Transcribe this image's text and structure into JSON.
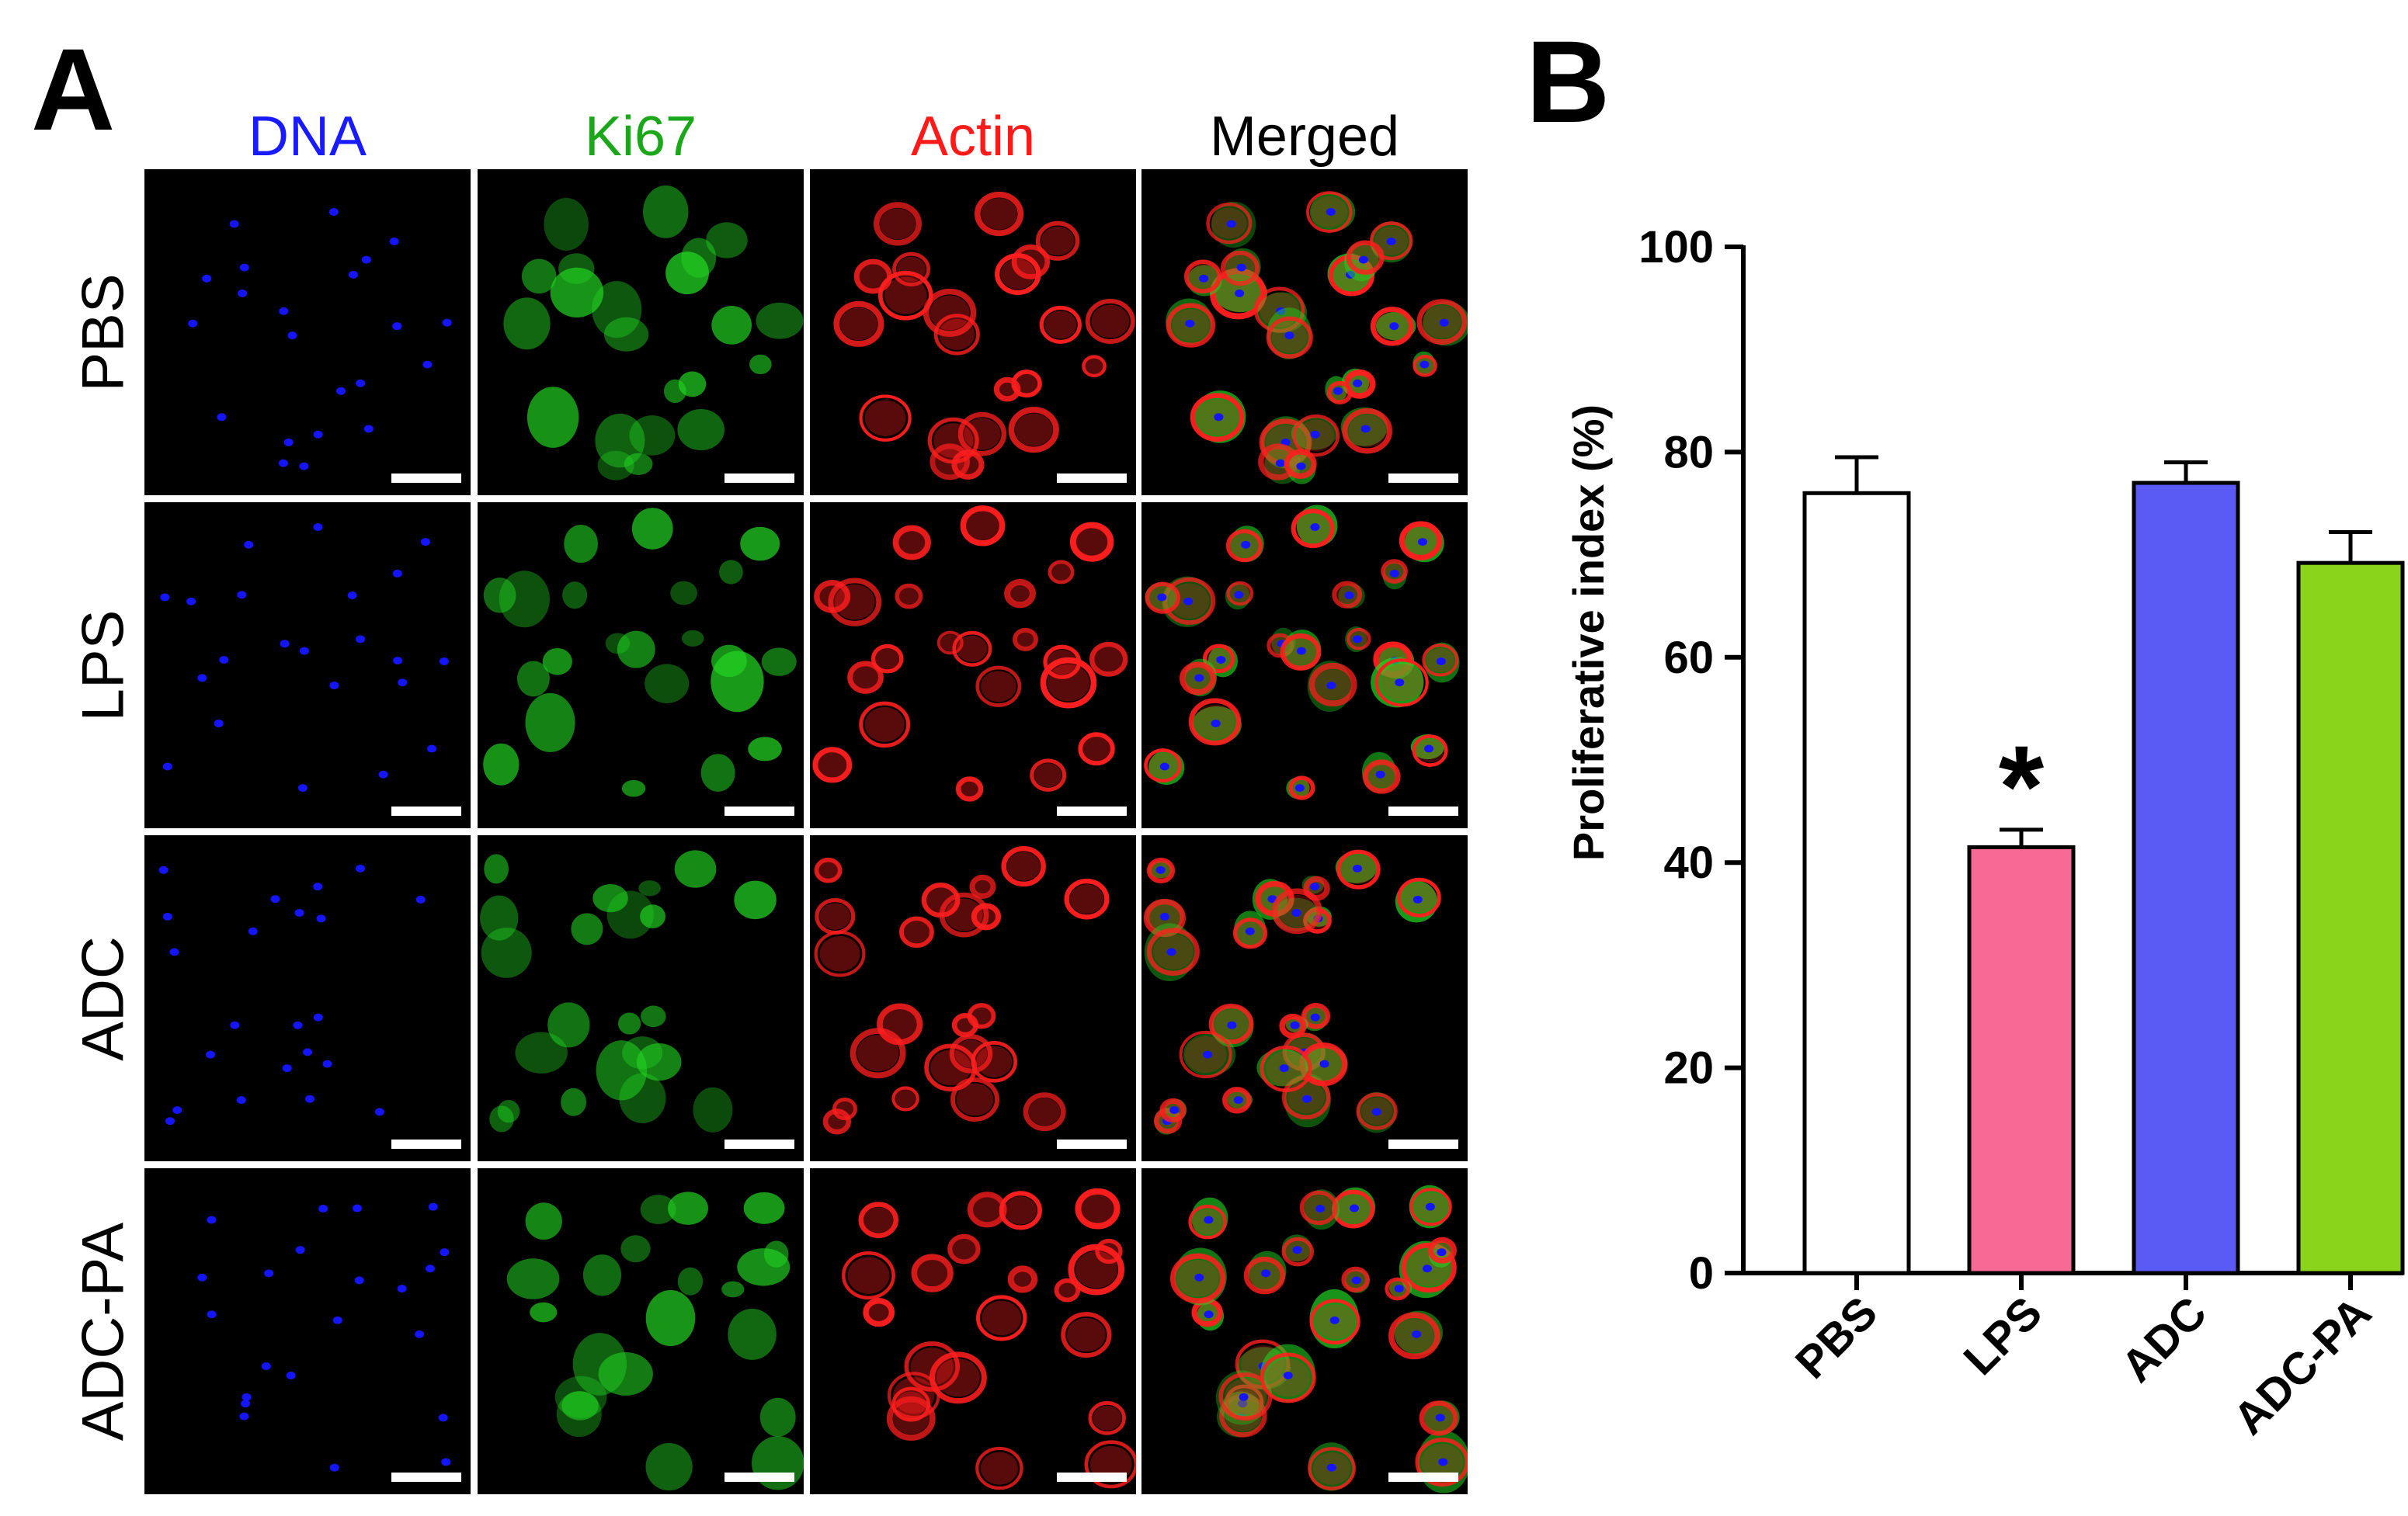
{
  "panels": {
    "a": {
      "letter": "A"
    },
    "b": {
      "letter": "B"
    }
  },
  "microscopy": {
    "columns": [
      {
        "label": "DNA",
        "color": "#1a1aff"
      },
      {
        "label": "Ki67",
        "color": "#1aa81a"
      },
      {
        "label": "Actin",
        "color": "#ff1a1a"
      },
      {
        "label": "Merged",
        "color": "#000000"
      }
    ],
    "rows": [
      "PBS",
      "LPS",
      "ADC",
      "ADC-PA"
    ],
    "channel_colors": {
      "dna": "#1414ff",
      "ki67": "#22d422",
      "actin": "#ff1e1e",
      "scalebar": "#ffffff"
    }
  },
  "chart_data": {
    "type": "bar",
    "categories": [
      "PBS",
      "LPS",
      "ADC",
      "ADC-PA"
    ],
    "values": [
      76,
      41.5,
      77,
      69.2
    ],
    "errors": [
      3.5,
      1.7,
      2.0,
      3.0
    ],
    "colors": [
      "#ffffff",
      "#f86a96",
      "#5a5af5",
      "#8ad41c"
    ],
    "ylabel": "Proliferative index (%)",
    "xlabel": "",
    "ylim": [
      0,
      100
    ],
    "yticks": [
      0,
      20,
      40,
      60,
      80,
      100
    ],
    "annotations": [
      {
        "category": "LPS",
        "text": "*"
      }
    ],
    "grid": false
  }
}
